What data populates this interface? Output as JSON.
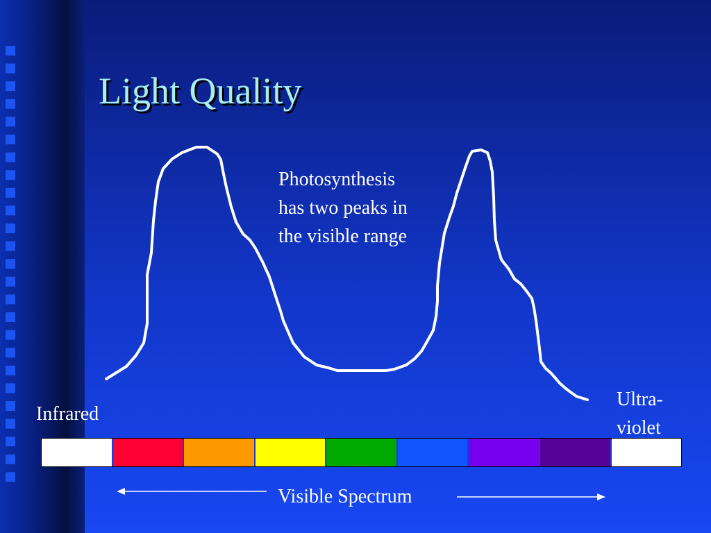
{
  "slide": {
    "title": "Light Quality",
    "annotation": "Photosynthesis\nhas two peaks in\nthe visible range",
    "left_label": "Infrared",
    "right_label": "Ultra-\nviolet",
    "bottom_label": "Visible Spectrum"
  },
  "spectrum_colors": [
    "#ffffff",
    "#ff0033",
    "#ff9900",
    "#ffff00",
    "#00aa00",
    "#1155ff",
    "#7700ee",
    "#550099",
    "#ffffff"
  ],
  "colors": {
    "title": "#a8f0f0",
    "text": "#ffffff",
    "background": "#1848f2"
  }
}
